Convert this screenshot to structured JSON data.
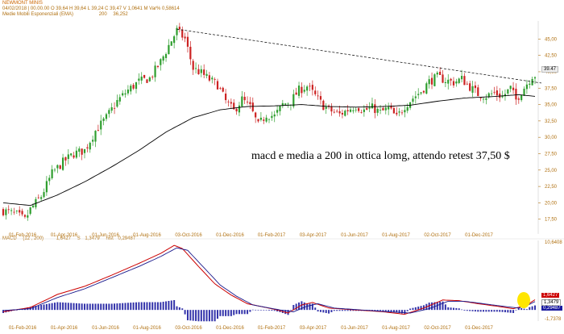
{
  "header": {
    "title": "NEWMONT MINIS",
    "ohlc": "04/02/2018 | 00.00.00 O 39,64 H 39,64 L 39,24 C 39,47 V 1,0641 M Var% 0,58614",
    "ema_label": "Medie Mobili Esponenziali (EMA)",
    "ema_period": "200",
    "ema_value": "36,252",
    "macd_label": "MACD",
    "macd_params": "(12 , 200)",
    "macd_value": "1,6427",
    "signal_label": "S",
    "signal_value": "1,3479",
    "hist_label": "hist",
    "hist_value": "0,29487"
  },
  "annotation": "macd e media a 200 in ottica lomg, attendo retest 37,50 $",
  "colors": {
    "up": "#2e9e2e",
    "down": "#cc2222",
    "ema": "#000000",
    "trendline": "#000000",
    "macd": "#cc0000",
    "signal": "#1a1a8c",
    "histogram": "#3333aa",
    "highlight": "#ffe600",
    "labels": "#b07010"
  },
  "price_tag": {
    "value": "39.47"
  },
  "macd_tags": [
    "1,6427",
    "1,3479",
    "0,29487"
  ],
  "chart_data": [
    {
      "type": "candlestick",
      "title": "NEWMONT MINIS",
      "ylim": [
        15.25,
        47.75
      ],
      "y_ticks": [
        17.5,
        20,
        22.5,
        25,
        27.5,
        30,
        32.5,
        35,
        37.5,
        40,
        42.5,
        45
      ],
      "y_tick_labels": [
        "17,50",
        "20,00",
        "22,50",
        "25,00",
        "27,50",
        "30,00",
        "32,50",
        "35,00",
        "37,50",
        "40,00",
        "42,50",
        "45,00"
      ],
      "x_tick_labels": [
        "01-Feb-2016",
        "01-Apr-2016",
        "01-Jun-2016",
        "01-Aug-2016",
        "03-Oct-2016",
        "01-Dec-2016",
        "01-Feb-2017",
        "03-Apr-2017",
        "01-Jun-2017",
        "01-Aug-2017",
        "02-Oct-2017",
        "01-Dec-2017"
      ],
      "price_keypoints": [
        [
          0,
          18.8
        ],
        [
          5,
          18.2
        ],
        [
          8,
          17.4
        ],
        [
          10,
          19.0
        ],
        [
          14,
          21.0
        ],
        [
          18,
          24.5
        ],
        [
          22,
          26.2
        ],
        [
          26,
          27.5
        ],
        [
          30,
          28.0
        ],
        [
          34,
          31.0
        ],
        [
          38,
          33.0
        ],
        [
          42,
          35.5
        ],
        [
          46,
          37.2
        ],
        [
          50,
          38.5
        ],
        [
          54,
          39.0
        ],
        [
          58,
          41.5
        ],
        [
          61,
          44.0
        ],
        [
          64,
          46.3
        ],
        [
          67,
          45.0
        ],
        [
          70,
          40.5
        ],
        [
          73,
          39.8
        ],
        [
          76,
          38.8
        ],
        [
          79,
          38.0
        ],
        [
          82,
          35.5
        ],
        [
          85,
          34.0
        ],
        [
          88,
          35.8
        ],
        [
          91,
          34.6
        ],
        [
          94,
          31.8
        ],
        [
          97,
          33.5
        ],
        [
          100,
          33.2
        ],
        [
          103,
          35.0
        ],
        [
          106,
          35.5
        ],
        [
          109,
          37.2
        ],
        [
          112,
          37.8
        ],
        [
          115,
          36.3
        ],
        [
          118,
          34.8
        ],
        [
          121,
          34.0
        ],
        [
          124,
          33.5
        ],
        [
          127,
          34.2
        ],
        [
          130,
          34.8
        ],
        [
          133,
          34.1
        ],
        [
          136,
          34.5
        ],
        [
          139,
          33.8
        ],
        [
          142,
          34.4
        ],
        [
          145,
          33.0
        ],
        [
          148,
          34.8
        ],
        [
          151,
          36.0
        ],
        [
          154,
          37.0
        ],
        [
          157,
          38.5
        ],
        [
          160,
          39.2
        ],
        [
          163,
          38.7
        ],
        [
          166,
          38.4
        ],
        [
          169,
          38.9
        ],
        [
          172,
          37.7
        ],
        [
          175,
          36.6
        ],
        [
          178,
          36.3
        ],
        [
          181,
          36.8
        ],
        [
          184,
          36.2
        ],
        [
          187,
          37.5
        ],
        [
          189,
          35.7
        ],
        [
          191,
          37.0
        ],
        [
          193,
          38.2
        ],
        [
          195,
          39.4
        ],
        [
          196,
          39.47
        ]
      ],
      "ema200_keypoints": [
        [
          0,
          20.0
        ],
        [
          10,
          19.6
        ],
        [
          20,
          21.2
        ],
        [
          30,
          23.2
        ],
        [
          40,
          25.5
        ],
        [
          50,
          28.0
        ],
        [
          60,
          30.8
        ],
        [
          70,
          33.0
        ],
        [
          80,
          34.2
        ],
        [
          90,
          34.7
        ],
        [
          100,
          34.8
        ],
        [
          110,
          35.0
        ],
        [
          120,
          34.7
        ],
        [
          130,
          34.6
        ],
        [
          140,
          34.7
        ],
        [
          150,
          34.9
        ],
        [
          160,
          35.5
        ],
        [
          170,
          36.0
        ],
        [
          180,
          36.2
        ],
        [
          190,
          36.5
        ],
        [
          196,
          36.25
        ]
      ],
      "trendline": {
        "from": [
          64,
          46.5
        ],
        "to": [
          196,
          38.4
        ]
      },
      "last_close": 39.47,
      "candle_count": 197
    },
    {
      "type": "macd",
      "name": "MACD (12,200)",
      "ylim": [
        -1.8,
        11.2
      ],
      "y_tick_labels_top": "10,6408",
      "y_tick_labels_bottom": "-1,7378",
      "macd_keypoints": [
        [
          0,
          -0.3
        ],
        [
          10,
          0.4
        ],
        [
          20,
          2.5
        ],
        [
          30,
          3.8
        ],
        [
          40,
          5.6
        ],
        [
          50,
          7.5
        ],
        [
          58,
          9.1
        ],
        [
          63,
          10.4
        ],
        [
          66,
          9.9
        ],
        [
          72,
          7.0
        ],
        [
          78,
          4.2
        ],
        [
          84,
          2.4
        ],
        [
          90,
          1.0
        ],
        [
          100,
          0.1
        ],
        [
          105,
          -0.5
        ],
        [
          110,
          0.8
        ],
        [
          114,
          1.2
        ],
        [
          120,
          0.3
        ],
        [
          130,
          0.0
        ],
        [
          140,
          -0.3
        ],
        [
          148,
          -0.7
        ],
        [
          155,
          0.3
        ],
        [
          162,
          1.6
        ],
        [
          168,
          1.5
        ],
        [
          175,
          1.0
        ],
        [
          182,
          0.6
        ],
        [
          188,
          0.2
        ],
        [
          193,
          0.8
        ],
        [
          196,
          1.64
        ]
      ],
      "signal_keypoints": [
        [
          0,
          -0.1
        ],
        [
          10,
          0.2
        ],
        [
          20,
          2.0
        ],
        [
          30,
          3.4
        ],
        [
          40,
          5.2
        ],
        [
          50,
          7.0
        ],
        [
          58,
          8.6
        ],
        [
          64,
          10.0
        ],
        [
          68,
          9.6
        ],
        [
          74,
          6.8
        ],
        [
          80,
          4.0
        ],
        [
          86,
          2.2
        ],
        [
          92,
          0.8
        ],
        [
          102,
          0.0
        ],
        [
          107,
          -0.3
        ],
        [
          112,
          0.6
        ],
        [
          116,
          1.0
        ],
        [
          122,
          0.3
        ],
        [
          132,
          0.0
        ],
        [
          142,
          -0.3
        ],
        [
          150,
          -0.5
        ],
        [
          157,
          0.2
        ],
        [
          164,
          1.4
        ],
        [
          170,
          1.4
        ],
        [
          177,
          1.0
        ],
        [
          184,
          0.6
        ],
        [
          190,
          0.3
        ],
        [
          194,
          0.9
        ],
        [
          196,
          1.35
        ]
      ],
      "histogram_last": 0.29487
    }
  ]
}
